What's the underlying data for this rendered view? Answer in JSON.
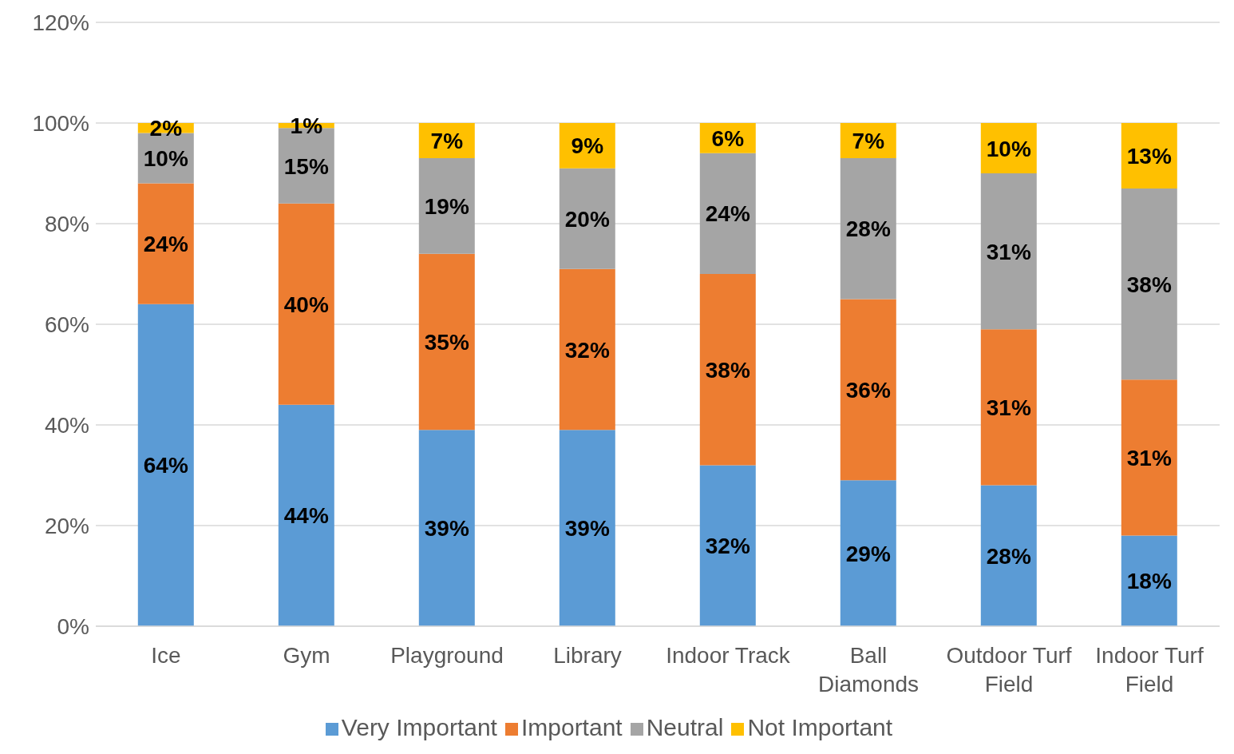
{
  "chart_data": {
    "type": "bar",
    "stacked": true,
    "categories": [
      "Ice",
      "Gym",
      "Playground",
      "Library",
      "Indoor Track",
      "Ball Diamonds",
      "Outdoor Turf Field",
      "Indoor Turf Field"
    ],
    "series": [
      {
        "name": "Very Important",
        "color": "#5b9bd5",
        "values": [
          64,
          44,
          39,
          39,
          32,
          29,
          28,
          18
        ],
        "value_labels": [
          "64%",
          "44%",
          "39%",
          "39%",
          "32%",
          "29%",
          "28%",
          "18%"
        ]
      },
      {
        "name": "Important",
        "color": "#ed7d31",
        "values": [
          24,
          40,
          35,
          32,
          38,
          36,
          31,
          31
        ],
        "value_labels": [
          "24%",
          "40%",
          "35%",
          "32%",
          "38%",
          "36%",
          "31%",
          "31%"
        ]
      },
      {
        "name": "Neutral",
        "color": "#a5a5a5",
        "values": [
          10,
          15,
          19,
          20,
          24,
          28,
          31,
          38
        ],
        "value_labels": [
          "10%",
          "15%",
          "19%",
          "20%",
          "24%",
          "28%",
          "31%",
          "38%"
        ]
      },
      {
        "name": "Not Important",
        "color": "#ffc000",
        "values": [
          2,
          1,
          7,
          9,
          6,
          7,
          10,
          13
        ],
        "value_labels": [
          "2%",
          "1%",
          "7%",
          "9%",
          "6%",
          "7%",
          "10%",
          "13%"
        ]
      }
    ],
    "ylim": [
      0,
      120
    ],
    "yticks": [
      {
        "value": 0,
        "label": "0%"
      },
      {
        "value": 20,
        "label": "20%"
      },
      {
        "value": 40,
        "label": "40%"
      },
      {
        "value": 60,
        "label": "60%"
      },
      {
        "value": 80,
        "label": "80%"
      },
      {
        "value": 100,
        "label": "100%"
      },
      {
        "value": 120,
        "label": "120%"
      }
    ],
    "grid": "y",
    "legend": "bottom"
  }
}
